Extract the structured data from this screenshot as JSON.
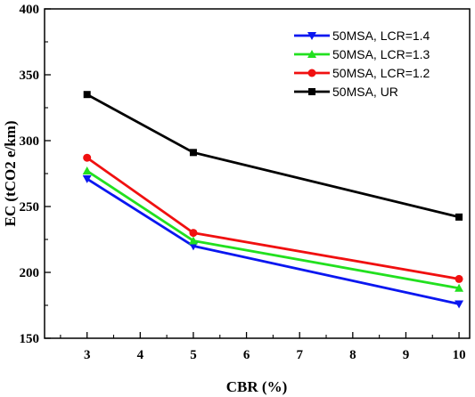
{
  "chart_data": {
    "type": "line",
    "xlabel": "CBR (%)",
    "ylabel": "EC (tCO2 e/km)",
    "xlim": [
      2.2,
      10.2
    ],
    "ylim": [
      150,
      400
    ],
    "xticks": [
      3,
      4,
      5,
      6,
      7,
      8,
      9,
      10
    ],
    "yticks": [
      150,
      200,
      250,
      300,
      350,
      400
    ],
    "x": [
      3,
      5,
      10
    ],
    "legend_position": "top-right",
    "grid": false,
    "series": [
      {
        "name": "50MSA, LCR=1.4",
        "color": "#0a17f0",
        "marker": "triangle-down",
        "values": [
          271,
          220,
          176
        ]
      },
      {
        "name": "50MSA, LCR=1.3",
        "color": "#22e01f",
        "marker": "triangle-up",
        "values": [
          277,
          224,
          188
        ]
      },
      {
        "name": "50MSA, LCR=1.2",
        "color": "#f01010",
        "marker": "circle",
        "values": [
          287,
          230,
          195
        ]
      },
      {
        "name": "50MSA, UR",
        "color": "#000000",
        "marker": "square",
        "values": [
          335,
          291,
          242
        ]
      }
    ]
  }
}
